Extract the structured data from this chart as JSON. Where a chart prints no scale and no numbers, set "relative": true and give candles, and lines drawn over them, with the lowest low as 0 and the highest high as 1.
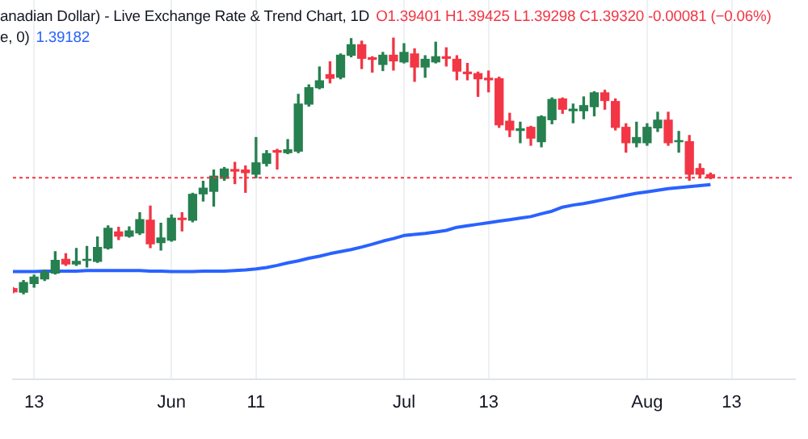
{
  "chart_data": {
    "type": "candlestick",
    "title": "anadian Dollar) - Live Exchange Rate & Trend Chart, 1D",
    "annotations": [
      "O1.39401 H1.39425 L1.39298 C1.39320 -0.00081 (−0.06%)",
      "e, 0)",
      "1.39182"
    ],
    "categories": [
      null,
      null,
      "13",
      null,
      null,
      null,
      null,
      null,
      null,
      null,
      null,
      null,
      null,
      null,
      null,
      "Jun",
      null,
      null,
      null,
      null,
      null,
      null,
      null,
      "11",
      null,
      null,
      null,
      null,
      null,
      null,
      null,
      null,
      null,
      null,
      null,
      null,
      null,
      "Jul",
      null,
      null,
      null,
      null,
      null,
      null,
      null,
      "13",
      null,
      null,
      null,
      null,
      null,
      null,
      null,
      null,
      null,
      null,
      null,
      null,
      null,
      null,
      "Aug",
      null,
      null,
      null,
      null,
      null,
      null,
      null,
      "13",
      null,
      null,
      null,
      null,
      null,
      null
    ],
    "relative": true,
    "ohlc": [
      [
        0.02,
        0.024,
        0.004,
        0.008
      ],
      [
        0.006,
        0.052,
        0,
        0.044
      ],
      [
        0.04,
        0.073,
        0.026,
        0.065
      ],
      [
        0.058,
        0.093,
        0.052,
        0.085
      ],
      [
        0.081,
        0.165,
        0.077,
        0.131
      ],
      [
        0.135,
        0.157,
        0.111,
        0.117
      ],
      [
        0.117,
        0.177,
        0.111,
        0.127
      ],
      [
        0.131,
        0.185,
        0.105,
        0.135
      ],
      [
        0.127,
        0.222,
        0.123,
        0.181
      ],
      [
        0.179,
        0.266,
        0.175,
        0.256
      ],
      [
        0.242,
        0.26,
        0.212,
        0.226
      ],
      [
        0.226,
        0.262,
        0.222,
        0.246
      ],
      [
        0.238,
        0.317,
        0.232,
        0.29
      ],
      [
        0.288,
        0.343,
        0.181,
        0.196
      ],
      [
        0.2,
        0.276,
        0.171,
        0.218
      ],
      [
        0.21,
        0.308,
        0.206,
        0.296
      ],
      [
        0.296,
        0.317,
        0.246,
        0.29
      ],
      [
        0.288,
        0.393,
        0.282,
        0.389
      ],
      [
        0.391,
        0.44,
        0.363,
        0.413
      ],
      [
        0.401,
        0.484,
        0.343,
        0.46
      ],
      [
        0.452,
        0.494,
        0.444,
        0.488
      ],
      [
        0.486,
        0.514,
        0.431,
        0.48
      ],
      [
        0.484,
        0.5,
        0.397,
        0.474
      ],
      [
        0.468,
        0.611,
        0.454,
        0.512
      ],
      [
        0.51,
        0.56,
        0.5,
        0.548
      ],
      [
        0.56,
        0.565,
        0.488,
        0.554
      ],
      [
        0.552,
        0.603,
        0.548,
        0.563
      ],
      [
        0.558,
        0.78,
        0.552,
        0.742
      ],
      [
        0.742,
        0.817,
        0.734,
        0.806
      ],
      [
        0.806,
        0.887,
        0.802,
        0.833
      ],
      [
        0.857,
        0.907,
        0.825,
        0.843
      ],
      [
        0.847,
        0.938,
        0.841,
        0.933
      ],
      [
        0.933,
        0.998,
        0.927,
        0.974
      ],
      [
        0.974,
        0.988,
        0.881,
        0.921
      ],
      [
        0.923,
        0.927,
        0.867,
        0.917
      ],
      [
        0.897,
        0.944,
        0.873,
        0.933
      ],
      [
        0.933,
        1,
        0.875,
        0.911
      ],
      [
        0.907,
        0.978,
        0.903,
        0.944
      ],
      [
        0.938,
        0.958,
        0.831,
        0.887
      ],
      [
        0.887,
        0.931,
        0.847,
        0.917
      ],
      [
        0.907,
        0.984,
        0.903,
        0.927
      ],
      [
        0.927,
        0.962,
        0.891,
        0.921
      ],
      [
        0.917,
        0.931,
        0.837,
        0.871
      ],
      [
        0.867,
        0.901,
        0.837,
        0.861
      ],
      [
        0.861,
        0.867,
        0.772,
        0.841
      ],
      [
        0.843,
        0.871,
        0.79,
        0.837
      ],
      [
        0.841,
        0.847,
        0.651,
        0.661
      ],
      [
        0.675,
        0.706,
        0.615,
        0.641
      ],
      [
        0.639,
        0.671,
        0.591,
        0.645
      ],
      [
        0.651,
        0.655,
        0.581,
        0.609
      ],
      [
        0.595,
        0.696,
        0.575,
        0.692
      ],
      [
        0.681,
        0.766,
        0.665,
        0.76
      ],
      [
        0.762,
        0.766,
        0.706,
        0.722
      ],
      [
        0.716,
        0.742,
        0.669,
        0.722
      ],
      [
        0.716,
        0.77,
        0.685,
        0.736
      ],
      [
        0.732,
        0.79,
        0.696,
        0.786
      ],
      [
        0.786,
        0.796,
        0.722,
        0.756
      ],
      [
        0.752,
        0.762,
        0.641,
        0.651
      ],
      [
        0.651,
        0.665,
        0.554,
        0.591
      ],
      [
        0.591,
        0.671,
        0.575,
        0.611
      ],
      [
        0.591,
        0.665,
        0.581,
        0.651
      ],
      [
        0.649,
        0.71,
        0.635,
        0.679
      ],
      [
        0.679,
        0.71,
        0.581,
        0.591
      ],
      [
        0.595,
        0.635,
        0.554,
        0.599
      ],
      [
        0.595,
        0.619,
        0.444,
        0.468
      ],
      [
        0.49,
        0.508,
        0.454,
        0.468
      ],
      [
        0.466,
        0.472,
        0.45,
        0.454
      ],
      null,
      null,
      null,
      null,
      null,
      null,
      null,
      null
    ],
    "colors": [
      "#f23645",
      "#26804f",
      "#26804f",
      "#26804f",
      "#26804f",
      "#f23645",
      "#26804f",
      "#26804f",
      "#26804f",
      "#26804f",
      "#f23645",
      "#26804f",
      "#26804f",
      "#f23645",
      "#26804f",
      "#26804f",
      "#f23645",
      "#26804f",
      "#26804f",
      "#26804f",
      "#26804f",
      "#f23645",
      "#f23645",
      "#26804f",
      "#26804f",
      "#f23645",
      "#26804f",
      "#26804f",
      "#26804f",
      "#26804f",
      "#f23645",
      "#26804f",
      "#26804f",
      "#f23645",
      "#f23645",
      "#26804f",
      "#f23645",
      "#26804f",
      "#f23645",
      "#26804f",
      "#26804f",
      "#f23645",
      "#f23645",
      "#f23645",
      "#f23645",
      "#f23645",
      "#f23645",
      "#f23645",
      "#26804f",
      "#f23645",
      "#26804f",
      "#26804f",
      "#f23645",
      "#26804f",
      "#26804f",
      "#26804f",
      "#f23645",
      "#f23645",
      "#f23645",
      "#26804f",
      "#26804f",
      "#26804f",
      "#f23645",
      "#26804f",
      "#f23645",
      "#f23645",
      "#f23645",
      null,
      null,
      null,
      null,
      null,
      null,
      null,
      null
    ],
    "series": [
      {
        "type": "line",
        "color": "#2962ff",
        "values": [
          0.087,
          0.087,
          0.087,
          0.089,
          0.089,
          0.089,
          0.089,
          0.091,
          0.091,
          0.091,
          0.091,
          0.091,
          0.091,
          0.089,
          0.089,
          0.087,
          0.087,
          0.087,
          0.089,
          0.089,
          0.089,
          0.091,
          0.093,
          0.097,
          0.103,
          0.111,
          0.121,
          0.129,
          0.139,
          0.147,
          0.157,
          0.165,
          0.173,
          0.183,
          0.194,
          0.206,
          0.216,
          0.228,
          0.232,
          0.236,
          0.242,
          0.248,
          0.26,
          0.266,
          0.272,
          0.278,
          0.284,
          0.29,
          0.296,
          0.302,
          0.313,
          0.323,
          0.339,
          0.347,
          0.353,
          0.361,
          0.369,
          0.377,
          0.385,
          0.393,
          0.399,
          0.405,
          0.411,
          0.415,
          0.419,
          0.423,
          0.427,
          null,
          null,
          null,
          null,
          null,
          null,
          null,
          null
        ]
      }
    ],
    "ref_lines": [
      {
        "axis": "y",
        "value": 0.454,
        "color": "#f23645",
        "line_style": "dotted"
      }
    ],
    "grid": "x"
  }
}
